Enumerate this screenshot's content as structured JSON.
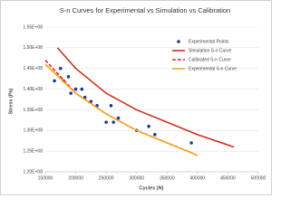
{
  "chart_data": {
    "type": "line",
    "title": "S-n Curves for Experimental vs Simulation vs Calibration",
    "x_label": "Cycles (N)",
    "y_label": "Stress (Pa)",
    "xlim": [
      150000,
      500000
    ],
    "xticks": [
      150000,
      200000,
      250000,
      300000,
      350000,
      400000,
      450000,
      500000
    ],
    "ylim": [
      120000000,
      155000000
    ],
    "yticks": [
      {
        "value": 120000000,
        "label": "1.20E+08"
      },
      {
        "value": 125000000,
        "label": "1.25E+08"
      },
      {
        "value": 130000000,
        "label": "1.30E+08"
      },
      {
        "value": 135000000,
        "label": "1.35E+08"
      },
      {
        "value": 140000000,
        "label": "1.40E+08"
      },
      {
        "value": 145000000,
        "label": "1.45E+08"
      },
      {
        "value": 150000000,
        "label": "1.50E+08"
      },
      {
        "value": 155000000,
        "label": "1.55E+08"
      }
    ],
    "grid": true,
    "legend": "upper right",
    "series": [
      {
        "name": "Experimental Points",
        "color": "#1f3a93",
        "mark": "points",
        "x": [
          165000,
          175000,
          180000,
          188000,
          192000,
          200000,
          210000,
          215000,
          225000,
          235000,
          250000,
          258000,
          262000,
          270000,
          300000,
          320000,
          330000,
          390000
        ],
        "values": [
          142000000,
          145000000,
          142000000,
          143000000,
          139000000,
          140000000,
          140000000,
          138000000,
          137000000,
          136000000,
          132000000,
          136000000,
          132000000,
          133000000,
          130000000,
          131000000,
          129000000,
          127000000
        ]
      },
      {
        "name": "Simulation S-n Curve",
        "color": "#c8321e",
        "mark": "line",
        "x": [
          170000,
          200000,
          250000,
          300000,
          350000,
          400000,
          460000
        ],
        "values": [
          150000000,
          145000000,
          139000000,
          135000000,
          132000000,
          129000000,
          126000000
        ]
      },
      {
        "name": "Calibrated S-n Curve",
        "color": "#e02020",
        "mark": "dashed",
        "x": [
          150000,
          200000,
          250000,
          300000,
          350000,
          400000
        ],
        "values": [
          147000000,
          139000000,
          134000000,
          130000000,
          127000000,
          124000000
        ]
      },
      {
        "name": "Experimental S-n Curve",
        "color": "#f5a623",
        "mark": "line",
        "x": [
          150000,
          200000,
          250000,
          300000,
          350000,
          400000
        ],
        "values": [
          146000000,
          139000000,
          134000000,
          130000000,
          127000000,
          124000000
        ]
      }
    ]
  }
}
